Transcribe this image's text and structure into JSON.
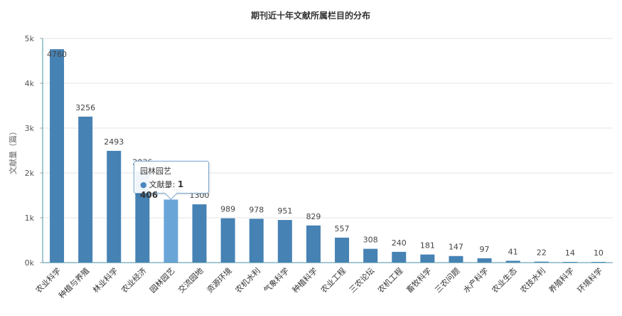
{
  "chart_data": {
    "type": "bar",
    "title": "期刊近十年文献所属栏目的分布",
    "ylabel": "文献量（篇）",
    "xlabel": "",
    "ylim": [
      0,
      5000
    ],
    "yticks": [
      {
        "value": 0,
        "label": "0k"
      },
      {
        "value": 1000,
        "label": "1k"
      },
      {
        "value": 2000,
        "label": "2k"
      },
      {
        "value": 3000,
        "label": "3k"
      },
      {
        "value": 4000,
        "label": "4k"
      },
      {
        "value": 5000,
        "label": "5k"
      }
    ],
    "grid": true,
    "categories": [
      "农业科学",
      "种植与养殖",
      "林业科学",
      "农业经济",
      "园林园艺",
      "交流园地",
      "资源环境",
      "农机水利",
      "气象科学",
      "种植科学",
      "农业工程",
      "三农论坛",
      "农机工程",
      "畜牧科学",
      "三农问题",
      "水产科学",
      "农业生态",
      "农技水利",
      "养殖科学",
      "环境科学"
    ],
    "values": [
      4760,
      3256,
      2493,
      2036,
      1406,
      1300,
      989,
      978,
      951,
      829,
      557,
      308,
      240,
      181,
      147,
      97,
      41,
      22,
      14,
      10
    ],
    "data_labels": [
      "4760",
      "3256",
      "2493",
      "2036",
      "1406",
      "1300",
      "989",
      "978",
      "951",
      "829",
      "557",
      "308",
      "240",
      "181",
      "147",
      "97",
      "41",
      "22",
      "14",
      "10"
    ],
    "bar_color": "#4682b4",
    "highlight_color": "#6aa5d8",
    "highlight_index": 4
  },
  "tooltip": {
    "title": "园林园艺",
    "series_name": "文献量",
    "value": "1 406"
  }
}
